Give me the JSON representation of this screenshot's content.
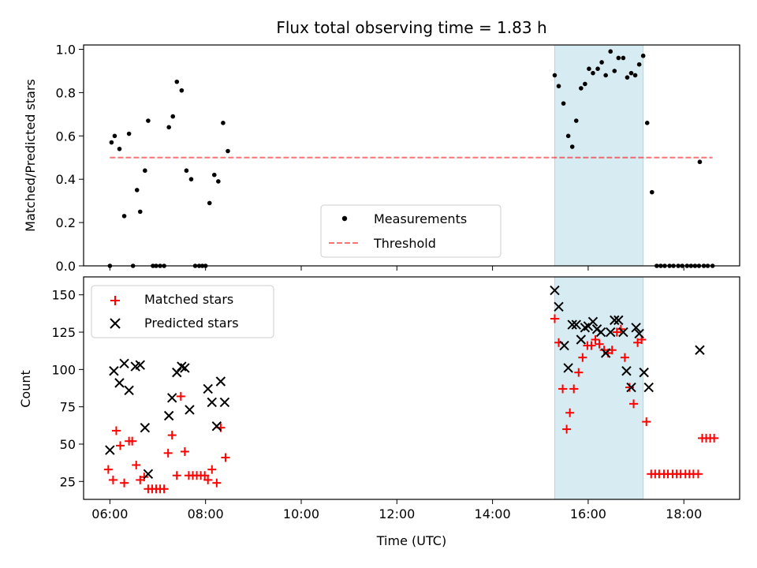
{
  "chart_data": [
    {
      "type": "scatter",
      "title": "Flux total observing time = 1.83 h",
      "ylabel": "Matched/Predicted stars",
      "xlabel": "",
      "xlim": [
        "05:27",
        "19:10"
      ],
      "ylim": [
        0,
        1.02
      ],
      "x_ticks": [
        "06:00",
        "08:00",
        "10:00",
        "12:00",
        "14:00",
        "16:00",
        "18:00"
      ],
      "y_ticks": [
        "0.0",
        "0.2",
        "0.4",
        "0.6",
        "0.8",
        "1.0"
      ],
      "legend_position": "lower-center",
      "shaded_interval": {
        "start": "15:18",
        "end": "17:09",
        "color": "#add8e6"
      },
      "threshold": {
        "name": "Threshold",
        "value": 0.5,
        "start": "06:00",
        "end": "18:36",
        "color": "#ff0000",
        "style": "dashed"
      },
      "series": [
        {
          "name": "Measurements",
          "color": "#000000",
          "marker": "dot",
          "points": [
            [
              "06:00",
              0.0
            ],
            [
              "06:02",
              0.57
            ],
            [
              "06:06",
              0.6
            ],
            [
              "06:12",
              0.54
            ],
            [
              "06:18",
              0.23
            ],
            [
              "06:24",
              0.61
            ],
            [
              "06:29",
              0.0
            ],
            [
              "06:34",
              0.35
            ],
            [
              "06:38",
              0.25
            ],
            [
              "06:44",
              0.44
            ],
            [
              "06:48",
              0.67
            ],
            [
              "06:54",
              0.0
            ],
            [
              "06:58",
              0.0
            ],
            [
              "07:03",
              0.0
            ],
            [
              "07:08",
              0.0
            ],
            [
              "07:14",
              0.64
            ],
            [
              "07:19",
              0.69
            ],
            [
              "07:24",
              0.85
            ],
            [
              "07:30",
              0.81
            ],
            [
              "07:36",
              0.44
            ],
            [
              "07:42",
              0.4
            ],
            [
              "07:47",
              0.0
            ],
            [
              "07:52",
              0.0
            ],
            [
              "07:56",
              0.0
            ],
            [
              "08:00",
              0.0
            ],
            [
              "08:05",
              0.29
            ],
            [
              "08:11",
              0.42
            ],
            [
              "08:16",
              0.39
            ],
            [
              "08:22",
              0.66
            ],
            [
              "08:28",
              0.53
            ],
            [
              "15:18",
              0.88
            ],
            [
              "15:23",
              0.83
            ],
            [
              "15:29",
              0.75
            ],
            [
              "15:35",
              0.6
            ],
            [
              "15:40",
              0.55
            ],
            [
              "15:45",
              0.67
            ],
            [
              "15:51",
              0.82
            ],
            [
              "15:56",
              0.84
            ],
            [
              "16:01",
              0.91
            ],
            [
              "16:06",
              0.89
            ],
            [
              "16:12",
              0.91
            ],
            [
              "16:17",
              0.94
            ],
            [
              "16:22",
              0.88
            ],
            [
              "16:28",
              0.99
            ],
            [
              "16:33",
              0.9
            ],
            [
              "16:38",
              0.96
            ],
            [
              "16:44",
              0.96
            ],
            [
              "16:49",
              0.87
            ],
            [
              "16:54",
              0.89
            ],
            [
              "16:59",
              0.88
            ],
            [
              "17:04",
              0.93
            ],
            [
              "17:09",
              0.97
            ],
            [
              "17:14",
              0.66
            ],
            [
              "17:20",
              0.34
            ],
            [
              "17:26",
              0.0
            ],
            [
              "17:31",
              0.0
            ],
            [
              "17:36",
              0.0
            ],
            [
              "17:42",
              0.0
            ],
            [
              "17:47",
              0.0
            ],
            [
              "17:53",
              0.0
            ],
            [
              "17:58",
              0.0
            ],
            [
              "18:04",
              0.0
            ],
            [
              "18:09",
              0.0
            ],
            [
              "18:14",
              0.0
            ],
            [
              "18:19",
              0.0
            ],
            [
              "18:20",
              0.48
            ],
            [
              "18:25",
              0.0
            ],
            [
              "18:30",
              0.0
            ],
            [
              "18:36",
              0.0
            ]
          ]
        }
      ]
    },
    {
      "type": "scatter",
      "title": "",
      "xlabel": "Time (UTC)",
      "ylabel": "Count",
      "xlim": [
        "05:27",
        "19:10"
      ],
      "ylim": [
        13,
        162
      ],
      "x_ticks": [
        "06:00",
        "08:00",
        "10:00",
        "12:00",
        "14:00",
        "16:00",
        "18:00"
      ],
      "y_ticks": [
        "25",
        "50",
        "75",
        "100",
        "125",
        "150"
      ],
      "legend_position": "upper-left",
      "shaded_interval": {
        "start": "15:18",
        "end": "17:09",
        "color": "#add8e6"
      },
      "series": [
        {
          "name": "Matched stars",
          "color": "#ff0000",
          "marker": "plus",
          "points": [
            [
              "05:58",
              33
            ],
            [
              "06:04",
              26
            ],
            [
              "06:08",
              59
            ],
            [
              "06:13",
              49
            ],
            [
              "06:18",
              24
            ],
            [
              "06:24",
              52
            ],
            [
              "06:28",
              52
            ],
            [
              "06:33",
              36
            ],
            [
              "06:38",
              26
            ],
            [
              "06:43",
              28
            ],
            [
              "06:48",
              20
            ],
            [
              "06:53",
              20
            ],
            [
              "06:58",
              20
            ],
            [
              "07:03",
              20
            ],
            [
              "07:08",
              20
            ],
            [
              "07:13",
              44
            ],
            [
              "07:18",
              56
            ],
            [
              "07:24",
              29
            ],
            [
              "07:29",
              82
            ],
            [
              "07:34",
              45
            ],
            [
              "07:39",
              29
            ],
            [
              "07:44",
              29
            ],
            [
              "07:49",
              29
            ],
            [
              "07:54",
              29
            ],
            [
              "07:59",
              29
            ],
            [
              "08:03",
              26
            ],
            [
              "08:08",
              33
            ],
            [
              "08:14",
              24
            ],
            [
              "08:19",
              61
            ],
            [
              "08:25",
              41
            ],
            [
              "15:18",
              134
            ],
            [
              "15:23",
              118
            ],
            [
              "15:28",
              87
            ],
            [
              "15:33",
              60
            ],
            [
              "15:37",
              71
            ],
            [
              "15:42",
              87
            ],
            [
              "15:48",
              98
            ],
            [
              "15:53",
              108
            ],
            [
              "15:59",
              116
            ],
            [
              "16:04",
              116
            ],
            [
              "16:09",
              120
            ],
            [
              "16:14",
              117
            ],
            [
              "16:20",
              113
            ],
            [
              "16:25",
              111
            ],
            [
              "16:30",
              113
            ],
            [
              "16:36",
              125
            ],
            [
              "16:41",
              127
            ],
            [
              "16:46",
              108
            ],
            [
              "16:52",
              88
            ],
            [
              "16:57",
              77
            ],
            [
              "17:02",
              118
            ],
            [
              "17:07",
              120
            ],
            [
              "17:13",
              65
            ],
            [
              "17:19",
              30
            ],
            [
              "17:24",
              30
            ],
            [
              "17:29",
              30
            ],
            [
              "17:35",
              30
            ],
            [
              "17:40",
              30
            ],
            [
              "17:46",
              30
            ],
            [
              "17:51",
              30
            ],
            [
              "17:56",
              30
            ],
            [
              "18:02",
              30
            ],
            [
              "18:07",
              30
            ],
            [
              "18:12",
              30
            ],
            [
              "18:18",
              30
            ],
            [
              "18:23",
              54
            ],
            [
              "18:28",
              54
            ],
            [
              "18:33",
              54
            ],
            [
              "18:38",
              54
            ]
          ]
        },
        {
          "name": "Predicted stars",
          "color": "#000000",
          "marker": "x",
          "points": [
            [
              "06:00",
              46
            ],
            [
              "06:05",
              99
            ],
            [
              "06:12",
              91
            ],
            [
              "06:18",
              104
            ],
            [
              "06:24",
              86
            ],
            [
              "06:32",
              102
            ],
            [
              "06:38",
              103
            ],
            [
              "06:44",
              61
            ],
            [
              "06:48",
              30
            ],
            [
              "07:14",
              69
            ],
            [
              "07:18",
              81
            ],
            [
              "07:24",
              98
            ],
            [
              "07:30",
              102
            ],
            [
              "07:34",
              101
            ],
            [
              "07:40",
              73
            ],
            [
              "08:03",
              87
            ],
            [
              "08:08",
              78
            ],
            [
              "08:14",
              62
            ],
            [
              "08:19",
              92
            ],
            [
              "08:24",
              78
            ],
            [
              "15:18",
              153
            ],
            [
              "15:23",
              142
            ],
            [
              "15:30",
              116
            ],
            [
              "15:35",
              101
            ],
            [
              "15:40",
              130
            ],
            [
              "15:45",
              130
            ],
            [
              "15:51",
              120
            ],
            [
              "15:56",
              128
            ],
            [
              "16:00",
              129
            ],
            [
              "16:06",
              132
            ],
            [
              "16:11",
              127
            ],
            [
              "16:16",
              125
            ],
            [
              "16:22",
              111
            ],
            [
              "16:28",
              125
            ],
            [
              "16:33",
              133
            ],
            [
              "16:38",
              133
            ],
            [
              "16:44",
              125
            ],
            [
              "16:48",
              99
            ],
            [
              "16:54",
              88
            ],
            [
              "17:00",
              128
            ],
            [
              "17:04",
              124
            ],
            [
              "17:10",
              98
            ],
            [
              "17:16",
              88
            ],
            [
              "18:20",
              113
            ]
          ]
        }
      ]
    }
  ]
}
